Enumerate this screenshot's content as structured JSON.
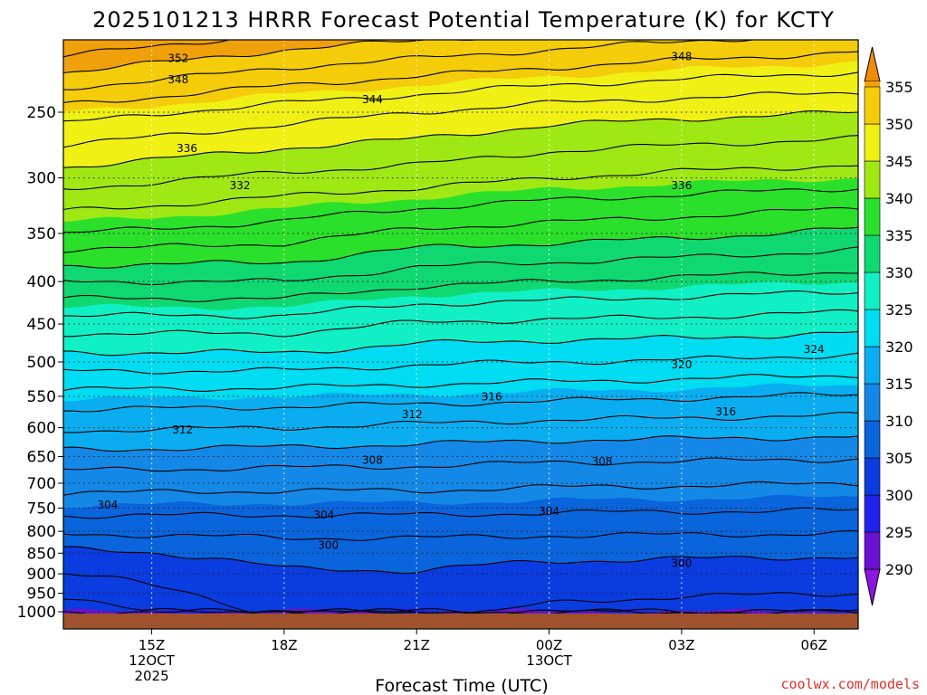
{
  "chart_data": {
    "type": "heatmap",
    "title": "2025101213 HRRR Forecast Potential Temperature (K) for KCTY",
    "xlabel": "Forecast Time (UTC)",
    "ylabel": "",
    "credit": "coolwx.com/models",
    "y_axis": {
      "scale": "log",
      "range_hpa": [
        1000,
        200
      ],
      "ticks": [
        "250",
        "300",
        "350",
        "400",
        "450",
        "500",
        "550",
        "600",
        "650",
        "700",
        "750",
        "800",
        "850",
        "900",
        "950",
        "1000"
      ]
    },
    "x_axis": {
      "range_hours": [
        13,
        31
      ],
      "ticks": [
        {
          "hour": 15,
          "line1": "15Z",
          "line2": "12OCT",
          "line3": "2025"
        },
        {
          "hour": 18,
          "line1": "18Z",
          "line2": "",
          "line3": ""
        },
        {
          "hour": 21,
          "line1": "21Z",
          "line2": "",
          "line3": ""
        },
        {
          "hour": 24,
          "line1": "00Z",
          "line2": "13OCT",
          "line3": ""
        },
        {
          "hour": 27,
          "line1": "03Z",
          "line2": "",
          "line3": ""
        },
        {
          "hour": 30,
          "line1": "06Z",
          "line2": "",
          "line3": ""
        }
      ]
    },
    "colorbar": {
      "levels": [
        "290",
        "295",
        "300",
        "305",
        "310",
        "315",
        "320",
        "325",
        "330",
        "335",
        "340",
        "345",
        "350",
        "355"
      ],
      "colors": [
        "#6a12d2",
        "#2222ea",
        "#0a3ce0",
        "#0a64dc",
        "#1488e6",
        "#0aaef0",
        "#00dcf2",
        "#10f0c4",
        "#10d870",
        "#2ae02a",
        "#a0e814",
        "#f0f014",
        "#f4cc0a",
        "#f0a00a"
      ],
      "low_color": "#8a16e0",
      "high_color": "#f08c0a"
    },
    "theta_profiles": [
      {
        "hour": 13,
        "p": [
          1000,
          950,
          900,
          850,
          800,
          750,
          700,
          650,
          600,
          550,
          500,
          450,
          400,
          350,
          300,
          250,
          200
        ],
        "theta": [
          294.5,
          296.3,
          298,
          299.5,
          302.3,
          304.8,
          306.8,
          309.3,
          312.3,
          315.3,
          319,
          323,
          328,
          334,
          339,
          345,
          355
        ]
      },
      {
        "hour": 18,
        "p": [
          1000,
          950,
          900,
          850,
          800,
          750,
          700,
          650,
          600,
          550,
          500,
          450,
          400,
          350,
          300,
          250,
          200
        ],
        "theta": [
          298.6,
          299.2,
          299.8,
          300.6,
          302.6,
          304.6,
          306.6,
          309,
          312,
          315,
          319,
          323,
          328,
          333,
          337.5,
          343,
          352
        ]
      },
      {
        "hour": 21,
        "p": [
          1000,
          950,
          900,
          850,
          800,
          750,
          700,
          650,
          600,
          550,
          500,
          450,
          400,
          350,
          300,
          250,
          200
        ],
        "theta": [
          298.8,
          299.3,
          299.9,
          300.6,
          302.6,
          304.6,
          306.6,
          308.8,
          311.6,
          314.8,
          318.3,
          321.8,
          326.5,
          331.5,
          337,
          342,
          351
        ]
      },
      {
        "hour": 24,
        "p": [
          1000,
          950,
          900,
          850,
          800,
          750,
          700,
          650,
          600,
          550,
          500,
          450,
          400,
          350,
          300,
          250,
          200
        ],
        "theta": [
          297.5,
          298.6,
          299.4,
          300.4,
          302.4,
          304.4,
          306.3,
          308.5,
          311.2,
          314.5,
          318,
          321.5,
          326,
          331,
          336,
          341,
          350
        ]
      },
      {
        "hour": 27,
        "p": [
          1000,
          950,
          900,
          850,
          800,
          750,
          700,
          650,
          600,
          550,
          500,
          450,
          400,
          350,
          300,
          250,
          200
        ],
        "theta": [
          297,
          298.2,
          299.2,
          300.3,
          302.3,
          304.3,
          306.2,
          308.4,
          311,
          314.2,
          317.8,
          321.3,
          325.5,
          330.5,
          335.5,
          340.5,
          349
        ]
      },
      {
        "hour": 31,
        "p": [
          1000,
          950,
          900,
          850,
          800,
          750,
          700,
          650,
          600,
          550,
          500,
          450,
          400,
          350,
          300,
          250,
          200
        ],
        "theta": [
          296.8,
          298,
          299,
          300.2,
          302.2,
          304.2,
          306,
          308.2,
          310.8,
          313.8,
          317.3,
          320.8,
          325,
          329.5,
          335,
          340,
          348
        ]
      }
    ],
    "contour_interval_k": 2,
    "contour_labels": [
      {
        "text": "352",
        "hour": 15.6,
        "p": 215
      },
      {
        "text": "348",
        "hour": 15.6,
        "p": 228
      },
      {
        "text": "344",
        "hour": 20,
        "p": 241
      },
      {
        "text": "336",
        "hour": 15.8,
        "p": 276
      },
      {
        "text": "332",
        "hour": 17,
        "p": 306
      },
      {
        "text": "348",
        "hour": 27,
        "p": 214
      },
      {
        "text": "336",
        "hour": 27,
        "p": 306
      },
      {
        "text": "324",
        "hour": 30,
        "p": 482
      },
      {
        "text": "320",
        "hour": 27,
        "p": 503
      },
      {
        "text": "316",
        "hour": 22.7,
        "p": 550
      },
      {
        "text": "316",
        "hour": 28,
        "p": 573
      },
      {
        "text": "312",
        "hour": 20.9,
        "p": 578
      },
      {
        "text": "312",
        "hour": 15.7,
        "p": 603
      },
      {
        "text": "308",
        "hour": 20,
        "p": 656
      },
      {
        "text": "308",
        "hour": 25.2,
        "p": 658
      },
      {
        "text": "304",
        "hour": 14,
        "p": 743
      },
      {
        "text": "304",
        "hour": 18.9,
        "p": 763
      },
      {
        "text": "304",
        "hour": 24,
        "p": 756
      },
      {
        "text": "300",
        "hour": 19,
        "p": 830
      },
      {
        "text": "300",
        "hour": 27,
        "p": 873
      }
    ]
  }
}
